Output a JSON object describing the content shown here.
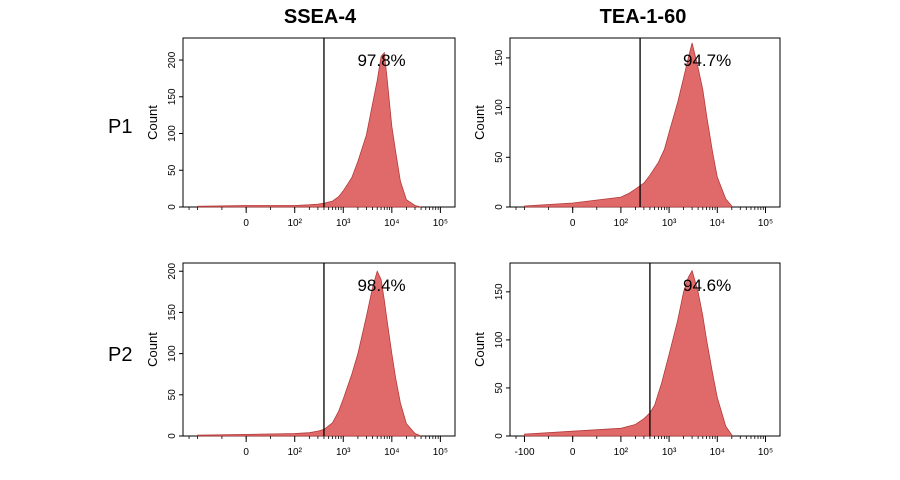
{
  "columns": [
    "SSEA-4",
    "TEA-1-60"
  ],
  "rows": [
    "P1",
    "P2"
  ],
  "colors": {
    "fill": "#e06a6a",
    "stroke": "#b23a3a",
    "gate": "#000000",
    "axis": "#000000"
  },
  "chart_data": [
    {
      "type": "area",
      "row_label": "P1",
      "column_label": "SSEA-4",
      "ylabel": "Count",
      "xscale": "log",
      "xlim": [
        -200,
        200000
      ],
      "ylim": [
        0,
        230
      ],
      "yticks": [
        0,
        50,
        100,
        150,
        200
      ],
      "ytick_labels": [
        "0",
        "50",
        "100",
        "150",
        "200"
      ],
      "xticks": [
        0,
        100,
        1000,
        10000,
        100000
      ],
      "xtick_labels": [
        "0",
        "10²",
        "10³",
        "10⁴",
        "10⁵"
      ],
      "gate": 400,
      "percent_label": "97.8%",
      "x": [
        -100,
        0,
        100,
        200,
        300,
        400,
        600,
        800,
        1000,
        1500,
        2000,
        3000,
        4000,
        5000,
        6000,
        7000,
        8000,
        9000,
        10000,
        12000,
        15000,
        20000,
        30000,
        40000
      ],
      "y": [
        1,
        2,
        2,
        3,
        4,
        5,
        8,
        14,
        22,
        40,
        62,
        98,
        140,
        172,
        205,
        210,
        175,
        140,
        110,
        75,
        35,
        10,
        2,
        0
      ]
    },
    {
      "type": "area",
      "row_label": "P1",
      "column_label": "TEA-1-60",
      "ylabel": "Count",
      "xscale": "log",
      "xlim": [
        -200,
        200000
      ],
      "ylim": [
        0,
        170
      ],
      "yticks": [
        0,
        50,
        100,
        150
      ],
      "ytick_labels": [
        "0",
        "50",
        "100",
        "150"
      ],
      "xticks": [
        0,
        100,
        1000,
        10000,
        100000
      ],
      "xtick_labels": [
        "0",
        "10²",
        "10³",
        "10⁴",
        "10⁵"
      ],
      "gate": 250,
      "percent_label": "94.7%",
      "x": [
        -100,
        0,
        100,
        150,
        200,
        300,
        400,
        600,
        800,
        1000,
        1500,
        2000,
        2500,
        3000,
        4000,
        5000,
        6000,
        8000,
        10000,
        15000,
        20000
      ],
      "y": [
        1,
        4,
        10,
        14,
        18,
        24,
        32,
        45,
        58,
        75,
        105,
        130,
        150,
        165,
        140,
        118,
        92,
        55,
        30,
        8,
        1
      ]
    },
    {
      "type": "area",
      "row_label": "P2",
      "column_label": "SSEA-4",
      "ylabel": "Count",
      "xscale": "log",
      "xlim": [
        -200,
        200000
      ],
      "ylim": [
        0,
        210
      ],
      "yticks": [
        0,
        50,
        100,
        150,
        200
      ],
      "ytick_labels": [
        "0",
        "50",
        "100",
        "150",
        "200"
      ],
      "xticks": [
        0,
        100,
        1000,
        10000,
        100000
      ],
      "xtick_labels": [
        "0",
        "10²",
        "10³",
        "10⁴",
        "10⁵"
      ],
      "gate": 400,
      "percent_label": "98.4%",
      "x": [
        -100,
        0,
        100,
        200,
        300,
        400,
        600,
        800,
        1000,
        1500,
        2000,
        3000,
        4000,
        5000,
        6000,
        7000,
        8000,
        10000,
        12000,
        15000,
        20000,
        30000,
        40000
      ],
      "y": [
        1,
        2,
        3,
        4,
        6,
        8,
        16,
        30,
        45,
        75,
        100,
        145,
        180,
        200,
        190,
        165,
        140,
        100,
        70,
        40,
        15,
        3,
        0
      ]
    },
    {
      "type": "area",
      "row_label": "P2",
      "column_label": "TEA-1-60",
      "ylabel": "Count",
      "xscale": "log",
      "xlim": [
        -200,
        200000
      ],
      "ylim": [
        0,
        180
      ],
      "yticks": [
        0,
        50,
        100,
        150
      ],
      "ytick_labels": [
        "0",
        "50",
        "100",
        "150"
      ],
      "xticks": [
        -100,
        0,
        100,
        1000,
        10000,
        100000
      ],
      "xtick_labels": [
        "-100",
        "0",
        "10²",
        "10³",
        "10⁴",
        "10⁵"
      ],
      "gate": 400,
      "percent_label": "94.6%",
      "x": [
        -100,
        0,
        100,
        200,
        300,
        400,
        500,
        700,
        1000,
        1500,
        2000,
        2500,
        3000,
        4000,
        5000,
        6000,
        8000,
        10000,
        15000,
        20000
      ],
      "y": [
        2,
        5,
        8,
        12,
        18,
        24,
        32,
        55,
        85,
        120,
        150,
        165,
        172,
        150,
        125,
        100,
        65,
        40,
        10,
        1
      ]
    }
  ]
}
